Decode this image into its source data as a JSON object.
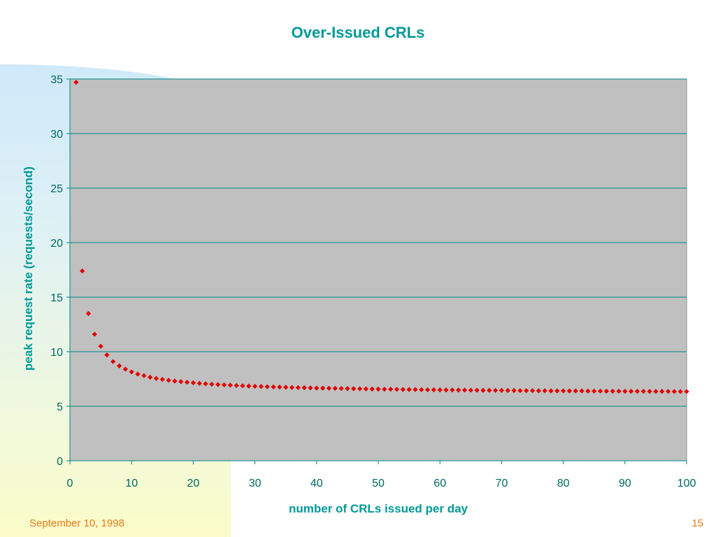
{
  "slide": {
    "title": "Over-Issued CRLs",
    "footer_date": "September 10, 1998",
    "page_number": "15"
  },
  "chart_data": {
    "type": "scatter",
    "title": "Over-Issued CRLs",
    "xlabel": "number of CRLs issued per day",
    "ylabel": "peak request rate (requests/second)",
    "xlim": [
      0,
      100
    ],
    "ylim": [
      0,
      35
    ],
    "x_ticks": [
      0,
      10,
      20,
      30,
      40,
      50,
      60,
      70,
      80,
      90,
      100
    ],
    "y_ticks": [
      0,
      5,
      10,
      15,
      20,
      25,
      30,
      35
    ],
    "grid": "horizontal",
    "legend": "none",
    "colors": {
      "plot_bg": "#c0c0c0",
      "marker": "#e00000",
      "grid": "#008888",
      "text": "#006666"
    },
    "series": [
      {
        "x": [
          1,
          2,
          3,
          4,
          5,
          6,
          7,
          8,
          9,
          10,
          11,
          12,
          13,
          14,
          15,
          16,
          17,
          18,
          19,
          20,
          21,
          22,
          23,
          24,
          25,
          26,
          27,
          28,
          29,
          30,
          31,
          32,
          33,
          34,
          35,
          36,
          37,
          38,
          39,
          40,
          41,
          42,
          43,
          44,
          45,
          46,
          47,
          48,
          49,
          50,
          51,
          52,
          53,
          54,
          55,
          56,
          57,
          58,
          59,
          60,
          61,
          62,
          63,
          64,
          65,
          66,
          67,
          68,
          69,
          70,
          71,
          72,
          73,
          74,
          75,
          76,
          77,
          78,
          79,
          80,
          81,
          82,
          83,
          84,
          85,
          86,
          87,
          88,
          89,
          90,
          91,
          92,
          93,
          94,
          95,
          96,
          97,
          98,
          99,
          100
        ],
        "y": [
          34.7,
          17.4,
          13.5,
          11.6,
          10.5,
          9.7,
          9.1,
          8.7,
          8.4,
          8.15,
          7.95,
          7.8,
          7.66,
          7.55,
          7.46,
          7.38,
          7.31,
          7.25,
          7.2,
          7.15,
          7.1,
          7.06,
          7.02,
          6.99,
          6.96,
          6.93,
          6.9,
          6.88,
          6.85,
          6.83,
          6.81,
          6.79,
          6.77,
          6.76,
          6.74,
          6.72,
          6.71,
          6.7,
          6.68,
          6.67,
          6.66,
          6.65,
          6.64,
          6.63,
          6.62,
          6.61,
          6.6,
          6.59,
          6.58,
          6.57,
          6.56,
          6.56,
          6.55,
          6.54,
          6.53,
          6.53,
          6.52,
          6.51,
          6.51,
          6.5,
          6.49,
          6.49,
          6.48,
          6.48,
          6.47,
          6.47,
          6.46,
          6.46,
          6.45,
          6.45,
          6.44,
          6.44,
          6.43,
          6.43,
          6.43,
          6.42,
          6.42,
          6.41,
          6.41,
          6.41,
          6.4,
          6.4,
          6.4,
          6.39,
          6.39,
          6.39,
          6.38,
          6.38,
          6.38,
          6.37,
          6.37,
          6.37,
          6.37,
          6.36,
          6.36,
          6.36,
          6.36,
          6.35,
          6.35,
          6.35
        ]
      }
    ]
  }
}
